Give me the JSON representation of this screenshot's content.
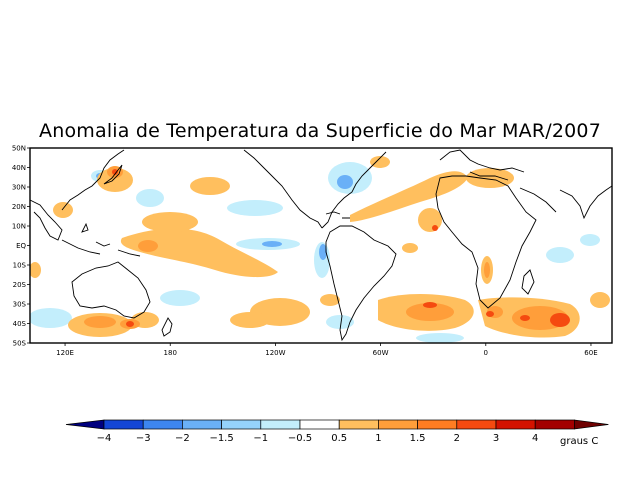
{
  "title": "Anomalia de Temperatura da Superficie do Mar MAR/2007",
  "map": {
    "lat_labels": [
      "50N",
      "40N",
      "30N",
      "20N",
      "10N",
      "EQ",
      "10S",
      "20S",
      "30S",
      "40S",
      "50S"
    ],
    "lon_labels": [
      "120E",
      "180",
      "120W",
      "60W",
      "0",
      "60E"
    ],
    "lon_range_deg": [
      100,
      432
    ],
    "lat_range_deg": [
      -50,
      50
    ]
  },
  "colorbar": {
    "unit_label": "graus C",
    "colors": [
      "#00007f",
      "#1346d6",
      "#3d86f0",
      "#6ab0f7",
      "#95d2fb",
      "#c3eefc",
      "#ffffff",
      "#ffbf5e",
      "#ff9e3a",
      "#ff7d22",
      "#f54a10",
      "#d41200",
      "#a30000",
      "#6f0000"
    ],
    "labels": [
      "−4",
      "−3",
      "−2",
      "−1.5",
      "−1",
      "−0.5",
      "0.5",
      "1",
      "1.5",
      "2",
      "3",
      "4"
    ]
  },
  "colors": {
    "land_outline": "#000000",
    "warm_light": "#ffbf5e",
    "warm_mid": "#ff9e3a",
    "warm_strong": "#f54a10",
    "cool_light": "#c3eefc",
    "cool_mid": "#6ab0f7"
  }
}
